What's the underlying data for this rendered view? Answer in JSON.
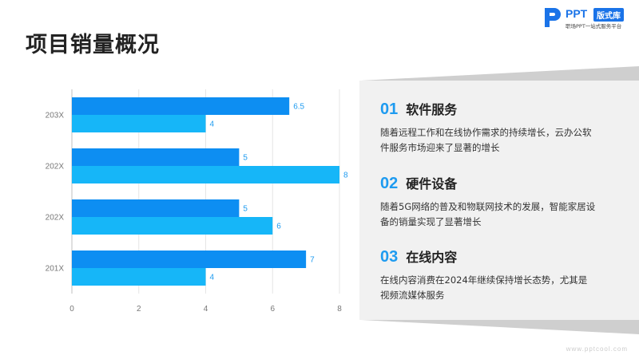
{
  "title": "项目销量概况",
  "logo": {
    "brand": "PPT",
    "badge": "版式库",
    "tagline": "职场PPT一站式服务平台"
  },
  "chart_data": {
    "type": "bar",
    "orientation": "horizontal",
    "categories": [
      "201X",
      "202X",
      "202X",
      "203X"
    ],
    "series": [
      {
        "values": [
          7,
          5,
          5,
          6.5
        ],
        "color": "#0d8ef2"
      },
      {
        "values": [
          4,
          6,
          8,
          4
        ],
        "color": "#16b6f8"
      }
    ],
    "xlim": [
      0,
      8
    ],
    "xticks": [
      0,
      2,
      4,
      6,
      8
    ],
    "grid": true,
    "data_labels": true
  },
  "items": [
    {
      "num": "01",
      "heading": "软件服务",
      "desc": "随着远程工作和在线协作需求的持续增长，云办公软件服务市场迎来了显著的增长"
    },
    {
      "num": "02",
      "heading": "硬件设备",
      "desc": "随着5G网络的普及和物联网技术的发展，智能家居设备的销量实现了显著增长"
    },
    {
      "num": "03",
      "heading": "在线内容",
      "desc": "在线内容消费在2024年继续保持增长态势，尤其是视频流媒体服务"
    }
  ],
  "website": "www.pptcool.com",
  "colors": {
    "accent": "#1e9bf0",
    "panel": "#f1f1f1"
  }
}
